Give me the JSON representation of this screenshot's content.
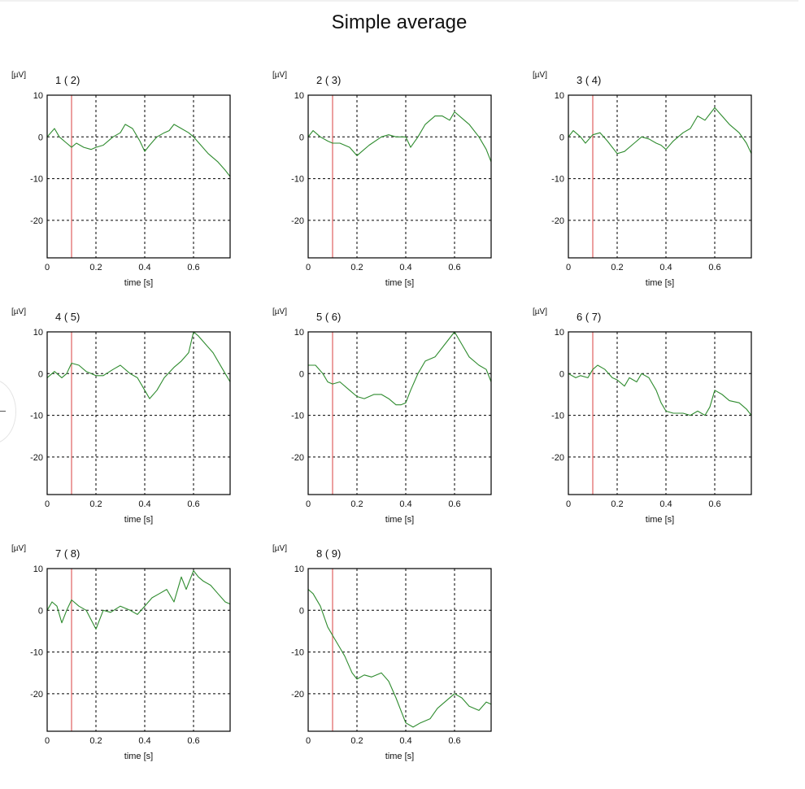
{
  "title": "Simple average",
  "chart_data": {
    "type": "line",
    "title": "Simple average",
    "unit_label": "[µV]",
    "xlabel": "time [s]",
    "xlim": [
      0,
      0.75
    ],
    "ylim": [
      -29,
      10
    ],
    "xticks": [
      0,
      0.2,
      0.4,
      0.6
    ],
    "xtick_labels": [
      "0",
      "0.2",
      "0.4",
      "0.6"
    ],
    "yticks": [
      10,
      0,
      -10,
      -20
    ],
    "ytick_labels": [
      "10",
      "0",
      "-10",
      "-20"
    ],
    "grid": true,
    "marker_time": 0.1,
    "colors": {
      "line": "#2e8b2e",
      "marker": "#e06060",
      "grid": "#000000"
    },
    "panels": [
      {
        "label": "1 ( 2)",
        "x": [
          0,
          0.03,
          0.05,
          0.08,
          0.1,
          0.12,
          0.15,
          0.18,
          0.2,
          0.23,
          0.27,
          0.3,
          0.32,
          0.35,
          0.38,
          0.4,
          0.42,
          0.45,
          0.48,
          0.5,
          0.52,
          0.55,
          0.58,
          0.6,
          0.63,
          0.66,
          0.7,
          0.73,
          0.75
        ],
        "y": [
          0,
          2,
          0,
          -1.5,
          -2.5,
          -1.5,
          -2.5,
          -3,
          -2.5,
          -2,
          0,
          1,
          3,
          2,
          -1,
          -3.5,
          -2,
          0,
          1,
          1.5,
          3,
          2,
          1,
          0,
          -2,
          -4,
          -6,
          -8,
          -9.5
        ]
      },
      {
        "label": "2 ( 3)",
        "x": [
          0,
          0.02,
          0.05,
          0.08,
          0.1,
          0.13,
          0.17,
          0.2,
          0.22,
          0.25,
          0.3,
          0.33,
          0.36,
          0.4,
          0.42,
          0.45,
          0.48,
          0.52,
          0.55,
          0.58,
          0.6,
          0.63,
          0.66,
          0.7,
          0.73,
          0.75
        ],
        "y": [
          0,
          1.5,
          0,
          -1,
          -1.5,
          -1.5,
          -2.5,
          -4.5,
          -3.5,
          -2,
          0,
          0.5,
          0,
          0,
          -2.5,
          0,
          3,
          5,
          5,
          4,
          6,
          4.5,
          3,
          0,
          -3,
          -6
        ]
      },
      {
        "label": "3 ( 4)",
        "x": [
          0,
          0.02,
          0.05,
          0.07,
          0.1,
          0.13,
          0.16,
          0.2,
          0.23,
          0.27,
          0.3,
          0.33,
          0.36,
          0.38,
          0.4,
          0.43,
          0.47,
          0.5,
          0.53,
          0.56,
          0.6,
          0.63,
          0.66,
          0.7,
          0.73,
          0.75
        ],
        "y": [
          0,
          1.5,
          0,
          -1.5,
          0.5,
          1,
          -1,
          -4,
          -3.5,
          -1.5,
          0,
          -0.5,
          -1.5,
          -2,
          -3,
          -1,
          1,
          2,
          5,
          4,
          7,
          5,
          3,
          1,
          -1.5,
          -4
        ]
      },
      {
        "label": "4 ( 5)",
        "x": [
          0,
          0.03,
          0.06,
          0.08,
          0.1,
          0.13,
          0.16,
          0.2,
          0.23,
          0.27,
          0.3,
          0.34,
          0.37,
          0.4,
          0.42,
          0.45,
          0.48,
          0.52,
          0.55,
          0.58,
          0.6,
          0.62,
          0.65,
          0.68,
          0.72,
          0.75
        ],
        "y": [
          -1,
          0.5,
          -1,
          0,
          2.5,
          2,
          0.5,
          -0.5,
          -0.5,
          1,
          2,
          0,
          -1,
          -4,
          -6,
          -4,
          -1,
          1.5,
          3,
          5,
          10,
          9,
          7,
          5,
          1,
          -2
        ]
      },
      {
        "label": "5 ( 6)",
        "x": [
          0,
          0.03,
          0.06,
          0.08,
          0.1,
          0.13,
          0.17,
          0.2,
          0.23,
          0.27,
          0.3,
          0.33,
          0.36,
          0.38,
          0.4,
          0.42,
          0.45,
          0.48,
          0.52,
          0.56,
          0.6,
          0.63,
          0.66,
          0.7,
          0.73,
          0.75
        ],
        "y": [
          2,
          2,
          0,
          -2,
          -2.5,
          -2,
          -4,
          -5.5,
          -6,
          -5,
          -5,
          -6,
          -7.5,
          -7.5,
          -7,
          -4,
          0,
          3,
          4,
          7,
          10,
          7,
          4,
          2,
          1,
          -2
        ]
      },
      {
        "label": "6 ( 7)",
        "x": [
          0,
          0.03,
          0.05,
          0.08,
          0.1,
          0.12,
          0.15,
          0.18,
          0.2,
          0.23,
          0.25,
          0.28,
          0.3,
          0.33,
          0.36,
          0.38,
          0.4,
          0.43,
          0.47,
          0.5,
          0.53,
          0.56,
          0.58,
          0.6,
          0.63,
          0.66,
          0.7,
          0.73,
          0.75
        ],
        "y": [
          0,
          -1,
          -0.5,
          -1,
          1,
          2,
          1,
          -1,
          -1.5,
          -3,
          -1,
          -2,
          0,
          -1,
          -4,
          -7,
          -9,
          -9.5,
          -9.5,
          -10,
          -9,
          -10,
          -8,
          -4,
          -5,
          -6.5,
          -7,
          -8.5,
          -10
        ]
      },
      {
        "label": "7 ( 8)",
        "x": [
          0,
          0.02,
          0.04,
          0.06,
          0.08,
          0.1,
          0.13,
          0.16,
          0.2,
          0.23,
          0.26,
          0.3,
          0.34,
          0.37,
          0.4,
          0.43,
          0.46,
          0.49,
          0.52,
          0.55,
          0.57,
          0.6,
          0.62,
          0.64,
          0.67,
          0.7,
          0.73,
          0.75
        ],
        "y": [
          0,
          2,
          1,
          -3,
          0,
          2.5,
          1,
          0,
          -4.5,
          0,
          -0.5,
          1,
          0,
          -1,
          1,
          3,
          4,
          5,
          2,
          8,
          5,
          9.5,
          8,
          7,
          6,
          4,
          2,
          1.5
        ]
      },
      {
        "label": "8 ( 9)",
        "x": [
          0,
          0.02,
          0.05,
          0.08,
          0.1,
          0.13,
          0.15,
          0.18,
          0.2,
          0.23,
          0.26,
          0.3,
          0.33,
          0.36,
          0.38,
          0.4,
          0.43,
          0.46,
          0.5,
          0.53,
          0.56,
          0.6,
          0.63,
          0.66,
          0.7,
          0.73,
          0.75
        ],
        "y": [
          5,
          4,
          1,
          -4,
          -6,
          -9,
          -11,
          -15,
          -16.5,
          -15.5,
          -16,
          -15,
          -17,
          -21,
          -24,
          -27,
          -28,
          -27,
          -26,
          -23.5,
          -22,
          -20,
          -21,
          -23,
          -24,
          -22,
          -22.5
        ]
      }
    ]
  }
}
